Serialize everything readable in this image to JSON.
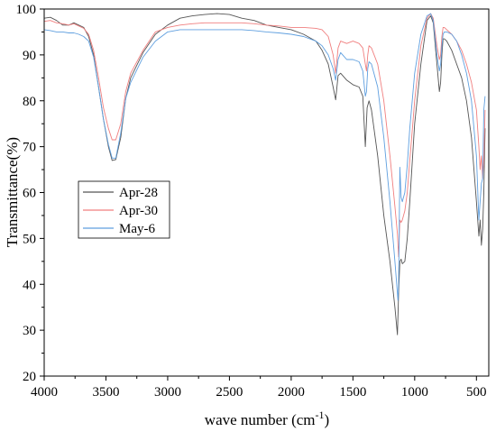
{
  "chart_data": {
    "type": "line",
    "title": "",
    "xlabel": "wave number (cm",
    "xlabel_sup": "-1",
    "xlabel_tail": ")",
    "ylabel": "Transmittance(%)",
    "xlim": [
      4000,
      400
    ],
    "ylim": [
      20,
      100
    ],
    "x_reversed": true,
    "grid": false,
    "legend_position": "left-middle",
    "x_ticks": [
      "4000",
      "3500",
      "3000",
      "2500",
      "2000",
      "1500",
      "1000",
      "500"
    ],
    "y_ticks": [
      "20",
      "30",
      "40",
      "50",
      "60",
      "70",
      "80",
      "90",
      "100"
    ],
    "series": [
      {
        "name": "Apr-28",
        "color": "#555555",
        "x": [
          4000,
          3950,
          3900,
          3850,
          3800,
          3760,
          3720,
          3680,
          3640,
          3600,
          3560,
          3520,
          3480,
          3450,
          3420,
          3380,
          3340,
          3300,
          3200,
          3100,
          3000,
          2900,
          2800,
          2700,
          2600,
          2500,
          2400,
          2300,
          2200,
          2100,
          2000,
          1900,
          1800,
          1750,
          1700,
          1660,
          1640,
          1620,
          1600,
          1550,
          1500,
          1450,
          1420,
          1400,
          1385,
          1370,
          1350,
          1300,
          1250,
          1200,
          1160,
          1140,
          1130,
          1120,
          1110,
          1100,
          1080,
          1060,
          1040,
          1000,
          950,
          900,
          870,
          850,
          820,
          800,
          790,
          780,
          770,
          760,
          740,
          700,
          660,
          620,
          580,
          540,
          500,
          480,
          470,
          460,
          450,
          440,
          430
        ],
        "y": [
          98.0,
          98.2,
          97.5,
          96.5,
          96.5,
          97.0,
          96.5,
          96.0,
          94.0,
          90.0,
          83.0,
          76.0,
          70.0,
          67.0,
          67.2,
          72.0,
          80.5,
          85.0,
          90.5,
          94.5,
          96.5,
          98.0,
          98.5,
          98.8,
          99.0,
          98.8,
          98.0,
          97.5,
          96.5,
          96.0,
          95.5,
          94.5,
          93.0,
          91.0,
          88.0,
          83.0,
          80.2,
          85.5,
          86.0,
          84.5,
          83.5,
          83.0,
          81.0,
          70.0,
          78.5,
          80.0,
          78.0,
          68.0,
          55.0,
          45.0,
          35.0,
          29.0,
          38.0,
          45.0,
          45.5,
          44.5,
          45.0,
          50.0,
          58.0,
          75.0,
          88.0,
          97.5,
          98.5,
          97.0,
          88.0,
          82.0,
          84.0,
          90.0,
          93.5,
          93.5,
          93.0,
          91.0,
          88.0,
          85.0,
          80.0,
          72.0,
          58.0,
          50.5,
          54.0,
          48.5,
          52.0,
          60.0,
          74.0
        ]
      },
      {
        "name": "Apr-30",
        "color": "#f07f7f",
        "x": [
          4000,
          3950,
          3900,
          3850,
          3800,
          3760,
          3720,
          3680,
          3640,
          3600,
          3560,
          3520,
          3480,
          3450,
          3420,
          3380,
          3340,
          3300,
          3200,
          3100,
          3000,
          2900,
          2800,
          2700,
          2600,
          2500,
          2400,
          2300,
          2200,
          2100,
          2000,
          1900,
          1800,
          1750,
          1700,
          1660,
          1640,
          1620,
          1600,
          1550,
          1500,
          1450,
          1420,
          1400,
          1390,
          1380,
          1370,
          1350,
          1300,
          1250,
          1200,
          1160,
          1140,
          1130,
          1120,
          1110,
          1100,
          1080,
          1060,
          1040,
          1000,
          950,
          900,
          870,
          850,
          820,
          800,
          790,
          780,
          770,
          760,
          740,
          700,
          660,
          620,
          580,
          540,
          500,
          480,
          470,
          460,
          450,
          440,
          430
        ],
        "y": [
          97.3,
          97.5,
          97.0,
          96.8,
          96.5,
          96.8,
          96.3,
          95.8,
          94.5,
          91.0,
          85.0,
          78.5,
          74.0,
          71.5,
          71.5,
          75.0,
          82.0,
          86.0,
          91.0,
          95.0,
          96.0,
          96.5,
          96.8,
          97.0,
          97.0,
          97.0,
          97.0,
          96.8,
          96.5,
          96.3,
          96.0,
          96.0,
          95.8,
          95.5,
          94.0,
          90.0,
          86.0,
          91.5,
          93.0,
          92.5,
          93.0,
          92.5,
          91.5,
          88.0,
          86.5,
          90.0,
          92.0,
          91.5,
          88.0,
          80.0,
          68.0,
          57.0,
          51.0,
          46.0,
          54.0,
          53.5,
          54.0,
          56.0,
          60.0,
          67.0,
          80.0,
          92.0,
          98.0,
          99.0,
          98.0,
          92.0,
          89.0,
          90.0,
          94.0,
          96.0,
          96.0,
          95.5,
          94.5,
          93.0,
          91.0,
          88.0,
          84.0,
          78.0,
          70.0,
          65.0,
          68.0,
          63.0,
          67.0,
          78.0
        ]
      },
      {
        "name": "May-6",
        "color": "#5f9fdf",
        "x": [
          4000,
          3950,
          3900,
          3850,
          3800,
          3760,
          3720,
          3680,
          3640,
          3600,
          3560,
          3520,
          3480,
          3450,
          3420,
          3380,
          3340,
          3300,
          3200,
          3100,
          3000,
          2900,
          2800,
          2700,
          2600,
          2500,
          2400,
          2300,
          2200,
          2100,
          2000,
          1900,
          1800,
          1750,
          1700,
          1660,
          1640,
          1620,
          1600,
          1550,
          1500,
          1450,
          1420,
          1400,
          1390,
          1380,
          1370,
          1350,
          1300,
          1250,
          1200,
          1160,
          1140,
          1135,
          1130,
          1120,
          1110,
          1100,
          1080,
          1060,
          1040,
          1000,
          950,
          900,
          870,
          850,
          820,
          800,
          790,
          780,
          770,
          760,
          740,
          700,
          660,
          620,
          580,
          540,
          500,
          480,
          470,
          460,
          450,
          440,
          430
        ],
        "y": [
          95.5,
          95.3,
          95.0,
          95.0,
          94.8,
          94.8,
          94.5,
          94.0,
          93.0,
          89.5,
          83.0,
          76.0,
          70.5,
          67.5,
          67.5,
          73.0,
          80.5,
          84.0,
          89.5,
          93.0,
          95.0,
          95.5,
          95.5,
          95.5,
          95.5,
          95.5,
          95.5,
          95.3,
          95.0,
          94.8,
          94.5,
          94.0,
          93.0,
          92.0,
          90.0,
          87.0,
          84.5,
          89.0,
          90.5,
          89.0,
          89.0,
          88.5,
          86.5,
          81.0,
          82.0,
          87.0,
          88.5,
          88.0,
          83.0,
          72.0,
          58.0,
          45.0,
          38.0,
          36.5,
          40.0,
          65.5,
          59.0,
          58.0,
          60.0,
          66.0,
          74.0,
          86.0,
          94.5,
          98.5,
          99.0,
          97.5,
          90.0,
          86.5,
          88.0,
          92.0,
          94.5,
          95.0,
          95.0,
          94.5,
          93.0,
          90.0,
          86.0,
          80.0,
          68.0,
          54.0,
          58.0,
          62.0,
          63.0,
          78.0,
          81.0
        ]
      }
    ]
  }
}
